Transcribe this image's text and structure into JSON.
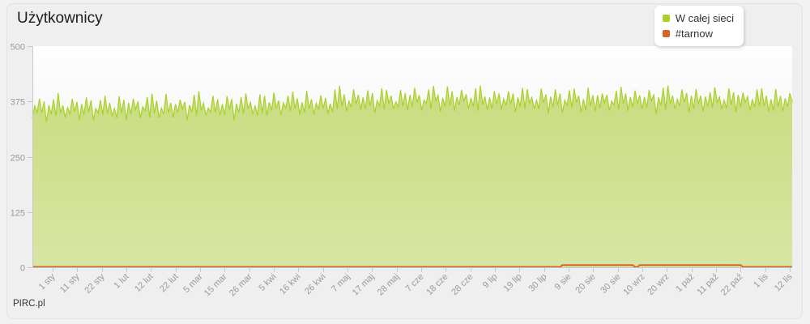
{
  "page": {
    "title": "Użytkownicy",
    "footer": "PIRC.pl"
  },
  "legend": {
    "items": [
      {
        "label": "W całej sieci",
        "color": "#a9d129"
      },
      {
        "label": "#tarnow",
        "color": "#d2642c"
      }
    ]
  },
  "chart_data": {
    "type": "area",
    "title": "Użytkownicy",
    "ylim": [
      0,
      500
    ],
    "y_ticks": [
      0,
      125,
      250,
      375,
      500
    ],
    "x_tick_labels": [
      "1 sty",
      "11 sty",
      "22 sty",
      "1 lut",
      "12 lut",
      "22 lut",
      "5 mar",
      "15 mar",
      "26 mar",
      "5 kwi",
      "16 kwi",
      "26 kwi",
      "7 maj",
      "17 maj",
      "28 maj",
      "7 cze",
      "18 cze",
      "28 cze",
      "9 lip",
      "19 lip",
      "30 lip",
      "9 sie",
      "20 sie",
      "30 sie",
      "10 wrz",
      "20 wrz",
      "1 paź",
      "11 paź",
      "22 paź",
      "1 lis",
      "12 lis"
    ],
    "grid": "off",
    "legend_position": "top-right",
    "series": [
      {
        "name": "W całej sieci",
        "type": "area",
        "color": "#a9d129",
        "fill_top": "#c9dc7f",
        "fill_bottom": "#d7e6a3",
        "approx_value_range": [
          330,
          415
        ],
        "description": "daily users across whole network, jagged oscillation around a slowly rising mean",
        "segments": [
          {
            "label": "sty",
            "points": 40,
            "base": 359
          },
          {
            "label": "lut",
            "points": 28,
            "base": 361
          },
          {
            "label": "mar",
            "points": 31,
            "base": 363
          },
          {
            "label": "kwi",
            "points": 30,
            "base": 368
          },
          {
            "label": "maj",
            "points": 31,
            "base": 376
          },
          {
            "label": "cze",
            "points": 30,
            "base": 379
          },
          {
            "label": "lip",
            "points": 31,
            "base": 377
          },
          {
            "label": "sie",
            "points": 31,
            "base": 376
          },
          {
            "label": "wrz",
            "points": 30,
            "base": 378
          },
          {
            "label": "paź",
            "points": 31,
            "base": 377
          },
          {
            "label": "lis",
            "points": 12,
            "base": 374
          }
        ],
        "oscillation_pattern": [
          -24,
          8,
          -14,
          22,
          -6,
          14,
          -26,
          4,
          -12,
          24,
          -18,
          30,
          -8,
          12,
          -22,
          2,
          -16,
          26,
          -10,
          16
        ],
        "micro_pattern": [
          3,
          -2,
          5,
          0,
          -4,
          2,
          -5,
          4,
          -1,
          -3,
          1,
          5,
          -2,
          -5,
          2,
          0,
          4,
          -4,
          3,
          -1,
          -2,
          2,
          0
        ]
      },
      {
        "name": "#tarnow",
        "type": "line",
        "color": "#d2642c",
        "description": "flat near zero all year with two small bumps (Aug–Sep and Sep–Oct)",
        "segments": [
          {
            "from": 0,
            "to": 225,
            "value": 1
          },
          {
            "from": 226,
            "to": 256,
            "value": 5
          },
          {
            "from": 257,
            "to": 258,
            "value": 1
          },
          {
            "from": 259,
            "to": 302,
            "value": 5
          },
          {
            "from": 303,
            "to": 324,
            "value": 1
          }
        ]
      }
    ],
    "colors": {
      "axis": "#c9c9c9",
      "tick_label": "#9a9a9a",
      "plot_bg_top": "#fefefe",
      "plot_bg_bottom": "#ebebeb"
    }
  }
}
